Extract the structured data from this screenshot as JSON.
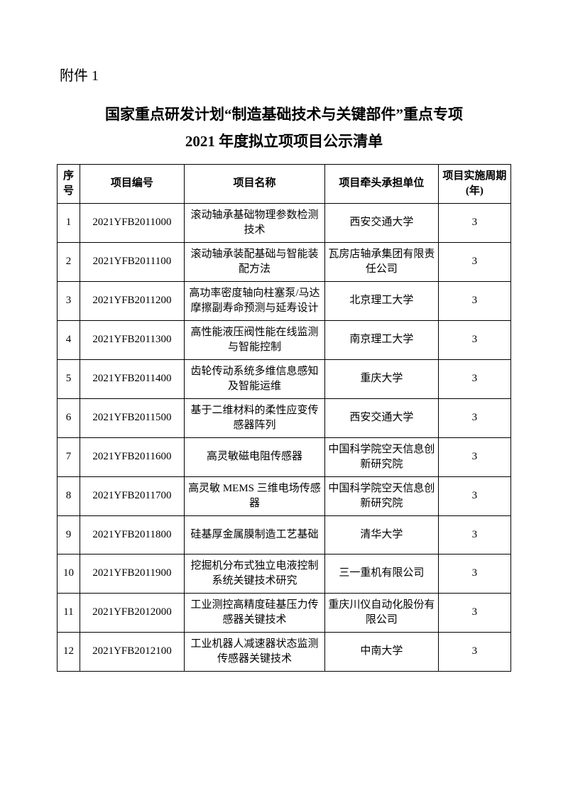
{
  "attachment_label": "附件 1",
  "title_line1": "国家重点研发计划“制造基础技术与关键部件”重点专项",
  "title_line2": "2021 年度拟立项项目公示清单",
  "table": {
    "columns": [
      "序号",
      "项目编号",
      "项目名称",
      "项目牵头承担单位",
      "项目实施周期(年)"
    ],
    "rows": [
      {
        "seq": "1",
        "code": "2021YFB2011000",
        "name": "滚动轴承基础物理参数检测技术",
        "org": "西安交通大学",
        "dur": "3"
      },
      {
        "seq": "2",
        "code": "2021YFB2011100",
        "name": "滚动轴承装配基础与智能装配方法",
        "org": "瓦房店轴承集团有限责任公司",
        "dur": "3"
      },
      {
        "seq": "3",
        "code": "2021YFB2011200",
        "name": "高功率密度轴向柱塞泵/马达摩擦副寿命预测与延寿设计",
        "org": "北京理工大学",
        "dur": "3"
      },
      {
        "seq": "4",
        "code": "2021YFB2011300",
        "name": "高性能液压阀性能在线监测与智能控制",
        "org": "南京理工大学",
        "dur": "3"
      },
      {
        "seq": "5",
        "code": "2021YFB2011400",
        "name": "齿轮传动系统多维信息感知及智能运维",
        "org": "重庆大学",
        "dur": "3"
      },
      {
        "seq": "6",
        "code": "2021YFB2011500",
        "name": "基于二维材料的柔性应变传感器阵列",
        "org": "西安交通大学",
        "dur": "3"
      },
      {
        "seq": "7",
        "code": "2021YFB2011600",
        "name": "高灵敏磁电阻传感器",
        "org": "中国科学院空天信息创新研究院",
        "dur": "3"
      },
      {
        "seq": "8",
        "code": "2021YFB2011700",
        "name": "高灵敏 MEMS 三维电场传感器",
        "org": "中国科学院空天信息创新研究院",
        "dur": "3"
      },
      {
        "seq": "9",
        "code": "2021YFB2011800",
        "name": "硅基厚金属膜制造工艺基础",
        "org": "清华大学",
        "dur": "3"
      },
      {
        "seq": "10",
        "code": "2021YFB2011900",
        "name": "挖掘机分布式独立电液控制系统关键技术研究",
        "org": "三一重机有限公司",
        "dur": "3"
      },
      {
        "seq": "11",
        "code": "2021YFB2012000",
        "name": "工业测控高精度硅基压力传感器关键技术",
        "org": "重庆川仪自动化股份有限公司",
        "dur": "3"
      },
      {
        "seq": "12",
        "code": "2021YFB2012100",
        "name": "工业机器人减速器状态监测传感器关键技术",
        "org": "中南大学",
        "dur": "3"
      }
    ]
  }
}
